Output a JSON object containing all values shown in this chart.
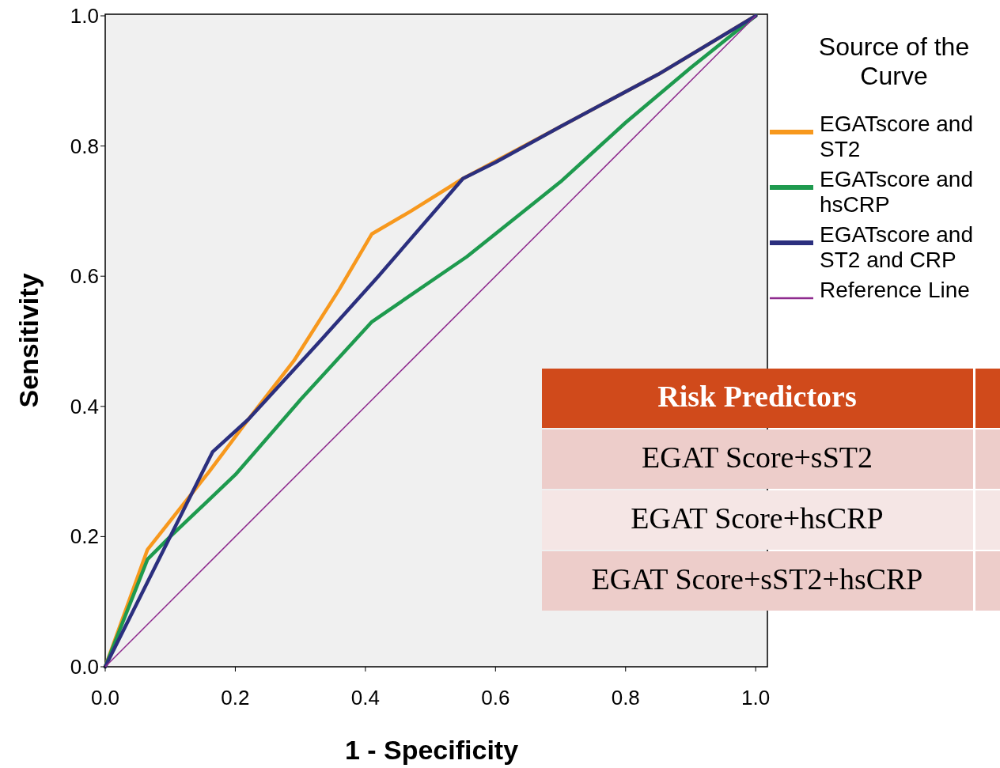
{
  "chart_data": {
    "type": "line",
    "xlabel": "1 - Specificity",
    "ylabel": "Sensitivity",
    "legend_title": "Source of the Curve",
    "legend": "right",
    "grid": false,
    "xlim": [
      0,
      1.018
    ],
    "ylim": [
      0,
      1
    ],
    "xticks": [
      {
        "value": 0,
        "label": "0.0"
      },
      {
        "value": 0.2,
        "label": "0.2"
      },
      {
        "value": 0.4,
        "label": "0.4"
      },
      {
        "value": 0.6,
        "label": "0.6"
      },
      {
        "value": 0.8,
        "label": "0.8"
      },
      {
        "value": 1,
        "label": "1.0"
      }
    ],
    "yticks": [
      {
        "value": 0,
        "label": "0.0"
      },
      {
        "value": 0.2,
        "label": "0.2"
      },
      {
        "value": 0.4,
        "label": "0.4"
      },
      {
        "value": 0.6,
        "label": "0.6"
      },
      {
        "value": 0.8,
        "label": "0.8"
      },
      {
        "value": 1,
        "label": "1.0"
      }
    ],
    "series": [
      {
        "name": "EGATscore and ST2",
        "color": "#f7981d",
        "x": [
          0,
          0.065,
          0.16,
          0.22,
          0.29,
          0.36,
          0.41,
          0.47,
          0.55,
          0.7,
          0.85,
          1
        ],
        "values": [
          0,
          0.18,
          0.3,
          0.38,
          0.47,
          0.58,
          0.665,
          0.7,
          0.75,
          0.83,
          0.91,
          1
        ]
      },
      {
        "name": "EGATscore and hsCRP",
        "color": "#1e9a4e",
        "x": [
          0,
          0.065,
          0.1,
          0.2,
          0.3,
          0.41,
          0.556,
          0.7,
          0.8,
          0.9,
          1
        ],
        "values": [
          0,
          0.165,
          0.2,
          0.295,
          0.41,
          0.53,
          0.63,
          0.745,
          0.836,
          0.92,
          1
        ]
      },
      {
        "name": "EGATscore and ST2 and CRP",
        "color": "#2b2f7e",
        "x": [
          0,
          0.09,
          0.165,
          0.22,
          0.33,
          0.42,
          0.55,
          0.6,
          0.7,
          0.85,
          1
        ],
        "values": [
          0,
          0.18,
          0.33,
          0.38,
          0.5,
          0.6,
          0.75,
          0.775,
          0.83,
          0.91,
          1
        ]
      },
      {
        "name": "Reference Line",
        "color": "#8e2b8e",
        "x": [
          0,
          1
        ],
        "values": [
          0,
          1
        ]
      }
    ],
    "annotations": [
      "Risk Predictors",
      "EGAT Score+sST2",
      "EGAT Score+hsCRP",
      "EGAT Score+sST2+hsCRP"
    ]
  }
}
